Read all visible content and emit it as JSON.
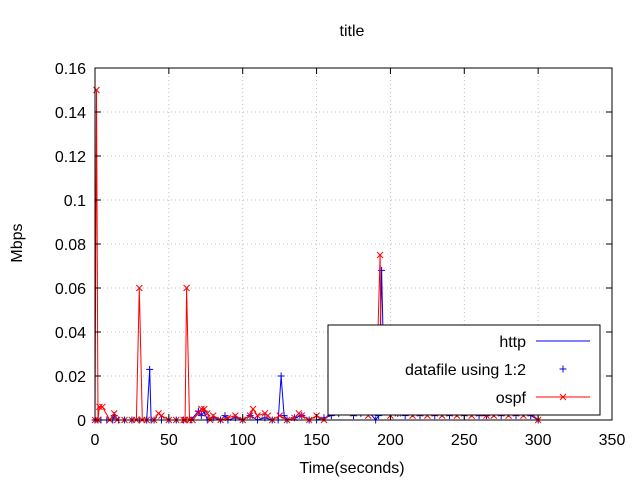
{
  "chart_data": {
    "type": "line",
    "title": "title",
    "xlabel": "Time(seconds)",
    "ylabel": "Mbps",
    "xlim": [
      0,
      350
    ],
    "ylim": [
      0,
      0.16
    ],
    "x_ticks": [
      0,
      50,
      100,
      150,
      200,
      250,
      300,
      350
    ],
    "y_ticks": [
      0,
      0.02,
      0.04,
      0.06,
      0.08,
      0.1,
      0.12,
      0.14,
      0.16
    ],
    "y_tick_labels": [
      "0",
      "0.02",
      "0.04",
      "0.06",
      "0.08",
      "0.1",
      "0.12",
      "0.14",
      "0.16"
    ],
    "grid": true,
    "legend_position": "bottom-right",
    "series": [
      {
        "name": "http",
        "style": "line",
        "color": "#0000ff",
        "x": [
          0,
          2,
          4,
          8,
          12,
          13,
          16,
          20,
          25,
          30,
          35,
          37,
          38,
          40,
          45,
          50,
          55,
          60,
          65,
          70,
          72,
          74,
          76,
          80,
          85,
          88,
          90,
          95,
          100,
          105,
          110,
          115,
          120,
          124,
          126,
          128,
          130,
          135,
          140,
          145,
          150,
          155,
          160,
          165,
          170,
          175,
          178,
          180,
          185,
          190,
          192,
          194,
          196,
          200,
          205,
          210,
          215,
          220,
          225,
          230,
          235,
          240,
          245,
          250,
          255,
          260,
          265,
          270,
          275,
          280,
          285,
          290,
          295,
          300
        ],
        "y": [
          0,
          0,
          0,
          0,
          0,
          0.002,
          0,
          0,
          0,
          0,
          0,
          0.023,
          0,
          0,
          0,
          0,
          0,
          0,
          0,
          0.004,
          0.002,
          0.004,
          0,
          0.001,
          0,
          0.002,
          0,
          0.001,
          0,
          0.002,
          0,
          0.001,
          0,
          0,
          0.02,
          0.002,
          0,
          0.001,
          0.002,
          0,
          0,
          0.001,
          0.002,
          0.003,
          0.004,
          0.002,
          0.005,
          0.003,
          0.004,
          0,
          0.002,
          0.068,
          0.01,
          0.004,
          0.003,
          0.002,
          0.003,
          0.002,
          0.004,
          0.002,
          0.003,
          0.002,
          0.003,
          0.002,
          0.003,
          0.002,
          0.002,
          0.003,
          0.002,
          0.003,
          0.002,
          0.003,
          0.002,
          0
        ]
      },
      {
        "name": "datafile using 1:2",
        "style": "points",
        "marker": "plus",
        "color": "#0000ff",
        "x": [
          0,
          2,
          4,
          8,
          12,
          13,
          16,
          20,
          25,
          30,
          35,
          37,
          38,
          40,
          45,
          50,
          55,
          60,
          65,
          70,
          72,
          74,
          76,
          80,
          85,
          88,
          90,
          95,
          100,
          105,
          110,
          115,
          120,
          124,
          126,
          128,
          130,
          135,
          140,
          145,
          150,
          155,
          160,
          165,
          170,
          175,
          178,
          180,
          185,
          190,
          192,
          194,
          196,
          200,
          205,
          210,
          215,
          220,
          225,
          230,
          235,
          240,
          245,
          250,
          255,
          260,
          265,
          270,
          275,
          280,
          285,
          290,
          295,
          300
        ],
        "y": [
          0,
          0,
          0,
          0,
          0,
          0.002,
          0,
          0,
          0,
          0,
          0,
          0.023,
          0,
          0,
          0,
          0,
          0,
          0,
          0,
          0.004,
          0.002,
          0.004,
          0,
          0.001,
          0,
          0.002,
          0,
          0.001,
          0,
          0.002,
          0,
          0.001,
          0,
          0,
          0.02,
          0.002,
          0,
          0.001,
          0.002,
          0,
          0,
          0.001,
          0.002,
          0.003,
          0.004,
          0.002,
          0.005,
          0.003,
          0.004,
          0,
          0.002,
          0.068,
          0.01,
          0.004,
          0.003,
          0.002,
          0.003,
          0.002,
          0.004,
          0.002,
          0.003,
          0.002,
          0.003,
          0.002,
          0.003,
          0.002,
          0.002,
          0.003,
          0.002,
          0.003,
          0.002,
          0.003,
          0.002,
          0
        ]
      },
      {
        "name": "ospf",
        "style": "linespoints",
        "marker": "cross",
        "color": "#ff0000",
        "x": [
          0,
          1,
          2,
          3,
          5,
          10,
          13,
          15,
          20,
          25,
          28,
          30,
          32,
          35,
          40,
          43,
          45,
          50,
          55,
          60,
          61,
          62,
          64,
          66,
          70,
          72,
          74,
          76,
          78,
          80,
          85,
          90,
          95,
          100,
          105,
          107,
          110,
          115,
          117,
          120,
          125,
          130,
          135,
          138,
          140,
          145,
          150,
          155,
          160,
          165,
          170,
          175,
          180,
          185,
          190,
          193,
          194,
          196,
          200,
          205,
          210,
          215,
          220,
          225,
          228,
          230,
          235,
          240,
          245,
          250,
          255,
          260,
          265,
          268,
          270,
          275,
          280,
          283,
          285,
          290,
          295,
          300
        ],
        "y": [
          0,
          0.15,
          0,
          0.006,
          0.006,
          0,
          0.003,
          0,
          0,
          0,
          0,
          0.06,
          0,
          0,
          0,
          0.003,
          0.002,
          0,
          0,
          0,
          0,
          0.06,
          0,
          0,
          0.003,
          0.005,
          0.005,
          0.003,
          0,
          0.002,
          0,
          0.001,
          0.002,
          0,
          0.002,
          0.005,
          0.002,
          0.003,
          0.002,
          0,
          0.002,
          0,
          0.001,
          0.003,
          0.002,
          0,
          0.002,
          0,
          0.004,
          0.004,
          0.004,
          0.003,
          0.004,
          0.002,
          0.004,
          0.075,
          0.004,
          0.004,
          0.002,
          0.003,
          0.004,
          0.002,
          0.003,
          0.002,
          0.004,
          0.003,
          0.002,
          0.003,
          0.002,
          0.003,
          0.002,
          0.003,
          0.002,
          0.003,
          0.002,
          0.003,
          0.002,
          0.004,
          0.003,
          0.002,
          0.003,
          0
        ]
      }
    ]
  }
}
